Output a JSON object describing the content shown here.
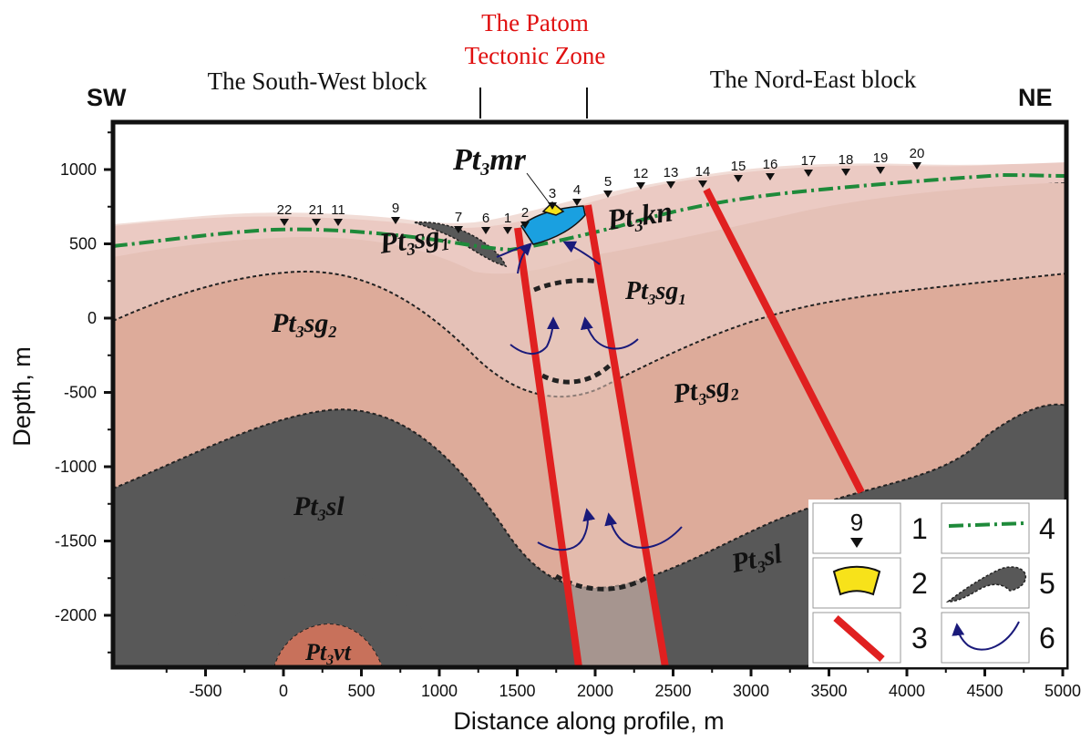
{
  "header": {
    "sw": "SW",
    "ne": "NE",
    "zone_line1": "The Patom",
    "zone_line2": "Tectonic Zone",
    "sw_block": "The South-West block",
    "ne_block": "The Nord-East block"
  },
  "axes": {
    "xlabel": "Distance along profile, m",
    "ylabel": "Depth, m",
    "xticks": [
      "-500",
      "0",
      "500",
      "1000",
      "1500",
      "2000",
      "2500",
      "3000",
      "3500",
      "4000",
      "4500",
      "5000"
    ],
    "yticks": [
      "1000",
      "500",
      "0",
      "-500",
      "-1000",
      "-1500",
      "-2000"
    ]
  },
  "stations": [
    {
      "label": "22"
    },
    {
      "label": "21"
    },
    {
      "label": "11"
    },
    {
      "label": "9"
    },
    {
      "label": "7"
    },
    {
      "label": "6"
    },
    {
      "label": "1"
    },
    {
      "label": "2"
    },
    {
      "label": "3"
    },
    {
      "label": "4"
    },
    {
      "label": "5"
    },
    {
      "label": "12"
    },
    {
      "label": "13"
    },
    {
      "label": "14"
    },
    {
      "label": "15"
    },
    {
      "label": "16"
    },
    {
      "label": "17"
    },
    {
      "label": "18"
    },
    {
      "label": "19"
    },
    {
      "label": "20"
    }
  ],
  "formations": {
    "pt3mr": {
      "a": "Pt",
      "b": "3",
      "c": "mr"
    },
    "pt3kn": {
      "a": "Pt",
      "b": "3",
      "c": "kn"
    },
    "pt3sg1_left": {
      "a": "Pt",
      "b": "3",
      "c": "sg",
      "d": "1"
    },
    "pt3sg1_right": {
      "a": "Pt",
      "b": "3",
      "c": "sg",
      "d": "1"
    },
    "pt3sg2_left": {
      "a": "Pt",
      "b": "3",
      "c": "sg",
      "d": "2"
    },
    "pt3sg2_right": {
      "a": "Pt",
      "b": "3",
      "c": "sg",
      "d": "2"
    },
    "pt3sl_left": {
      "a": "Pt",
      "b": "3",
      "c": "sl"
    },
    "pt3sl_right": {
      "a": "Pt",
      "b": "3",
      "c": "sl"
    },
    "pt3vt": {
      "a": "Pt",
      "b": "3",
      "c": "vt"
    }
  },
  "legend": {
    "station_example": "9",
    "n1": "1",
    "n2": "2",
    "n3": "3",
    "n4": "4",
    "n5": "5",
    "n6": "6"
  },
  "colors": {
    "fault": "#e02020",
    "groundwater_line": "#1e8a3a",
    "flow_arrow": "#1a1a7a",
    "orebody_blue": "#1aa0e0",
    "orebody_yellow": "#f7e21a",
    "dark_layer": "#585858",
    "surface_layer": "#f1dcd6",
    "kn_layer": "#ebcac3",
    "sg1_layer": "#e5c1b7",
    "sg2_layer": "#ddab9a",
    "sl_layer": "#d8876f",
    "vt_layer": "#c8715b",
    "zone_title": "#e01010"
  }
}
